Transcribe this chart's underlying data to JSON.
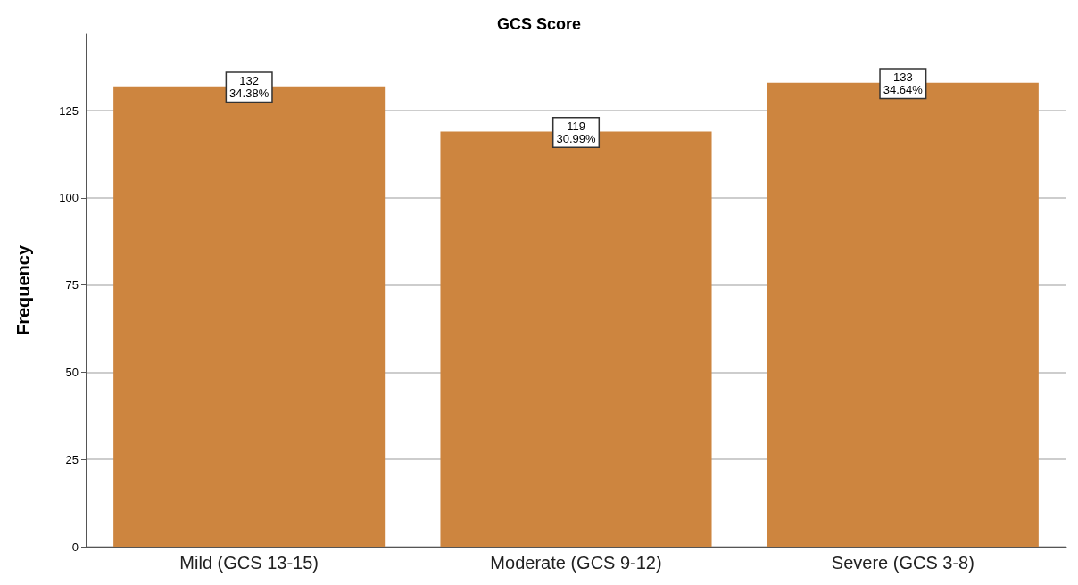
{
  "chart_data": {
    "type": "bar",
    "title": "GCS Score",
    "ylabel": "Frequency",
    "categories": [
      "Mild (GCS 13-15)",
      "Moderate (GCS 9-12)",
      "Severe (GCS 3-8)"
    ],
    "values": [
      132,
      119,
      133
    ],
    "value_labels": [
      "132\n34.38%",
      "119\n30.99%",
      "133\n34.64%"
    ],
    "color": "#cd853f",
    "ylim": [
      0,
      147
    ],
    "yticks": [
      0,
      25,
      50,
      75,
      100,
      125
    ],
    "grid": "y"
  }
}
